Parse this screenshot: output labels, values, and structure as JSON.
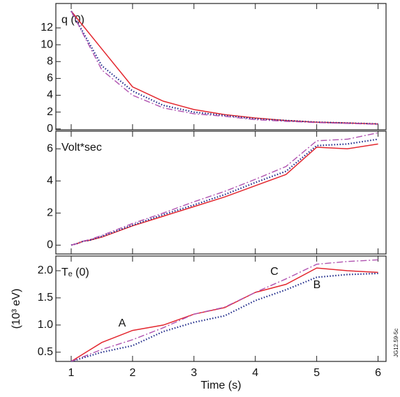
{
  "chart_data": [
    {
      "type": "line",
      "title": "q (0)",
      "x": [
        1,
        1.5,
        2,
        2.5,
        3,
        3.5,
        4,
        4.5,
        5,
        5.5,
        6
      ],
      "series": [
        {
          "color": "#e3262e",
          "style": "solid",
          "values": [
            14,
            9.5,
            5,
            3.3,
            2.3,
            1.7,
            1.3,
            1.0,
            0.8,
            0.7,
            0.6
          ]
        },
        {
          "color": "#1f2a8a",
          "style": "dotted",
          "values": [
            14,
            7.5,
            4.5,
            2.8,
            2.0,
            1.6,
            1.2,
            1.0,
            0.8,
            0.7,
            0.6
          ]
        },
        {
          "color": "#b052b0",
          "style": "dashdot",
          "values": [
            14,
            7.0,
            4.0,
            2.5,
            1.8,
            1.5,
            1.1,
            0.9,
            0.75,
            0.65,
            0.55
          ]
        }
      ],
      "xlim": [
        0.75,
        6.13
      ],
      "xticks": [
        1,
        2,
        3,
        4,
        5,
        6
      ],
      "ylim": [
        -0.1,
        14.9
      ],
      "yticks": [
        0,
        2,
        4,
        6,
        8,
        10,
        12
      ]
    },
    {
      "type": "line",
      "title": "Volt*sec",
      "x": [
        1,
        1.1,
        1.2,
        1.3,
        1.5,
        2,
        2.5,
        3,
        3.5,
        4,
        4.5,
        5,
        5.5,
        6
      ],
      "series": [
        {
          "color": "#e3262e",
          "style": "solid",
          "values": [
            0,
            0.1,
            0.25,
            0.3,
            0.5,
            1.2,
            1.8,
            2.4,
            3.0,
            3.7,
            4.4,
            6.1,
            6.0,
            6.3
          ]
        },
        {
          "color": "#1f2a8a",
          "style": "dotted",
          "values": [
            0,
            0.1,
            0.25,
            0.3,
            0.55,
            1.25,
            1.9,
            2.5,
            3.15,
            3.9,
            4.6,
            6.2,
            6.3,
            6.6
          ]
        },
        {
          "color": "#b052b0",
          "style": "dashdot",
          "values": [
            0,
            0.1,
            0.25,
            0.35,
            0.6,
            1.35,
            2.0,
            2.7,
            3.35,
            4.1,
            4.9,
            6.5,
            6.6,
            7.0
          ]
        }
      ],
      "xlim": [
        0.75,
        6.13
      ],
      "xticks": [
        1,
        2,
        3,
        4,
        5,
        6
      ],
      "ylim": [
        -0.55,
        7.1
      ],
      "yticks": [
        0,
        2,
        4,
        6
      ]
    },
    {
      "type": "line",
      "title": "Tₑ (0)",
      "xlabel": "Time (s)",
      "ylabel": "(10³ eV)",
      "x": [
        1,
        1.5,
        2,
        2.5,
        3,
        3.5,
        4,
        4.5,
        5,
        5.5,
        6
      ],
      "series": [
        {
          "name": "A",
          "color": "#e3262e",
          "style": "solid",
          "values": [
            0.33,
            0.68,
            0.9,
            1.0,
            1.2,
            1.32,
            1.6,
            1.75,
            2.05,
            2.0,
            1.97
          ]
        },
        {
          "name": "B",
          "color": "#1f2a8a",
          "style": "dotted",
          "values": [
            0.33,
            0.5,
            0.62,
            0.88,
            1.05,
            1.17,
            1.45,
            1.65,
            1.88,
            1.93,
            1.95
          ]
        },
        {
          "name": "C",
          "color": "#b052b0",
          "style": "dashdot",
          "values": [
            0.33,
            0.55,
            0.73,
            0.95,
            1.2,
            1.33,
            1.6,
            1.85,
            2.12,
            2.17,
            2.2
          ]
        }
      ],
      "xlim": [
        0.75,
        6.13
      ],
      "xticks": [
        1,
        2,
        3,
        4,
        5,
        6
      ],
      "ylim": [
        0.33,
        2.27
      ],
      "yticks": [
        {
          "value": 0.5,
          "label": "0.5"
        },
        {
          "value": 1.0,
          "label": "1.0"
        },
        {
          "value": 1.5,
          "label": "1.5"
        },
        {
          "value": 2.0,
          "label": "2.0"
        }
      ],
      "figure_id": "JG12.59-5c"
    }
  ]
}
